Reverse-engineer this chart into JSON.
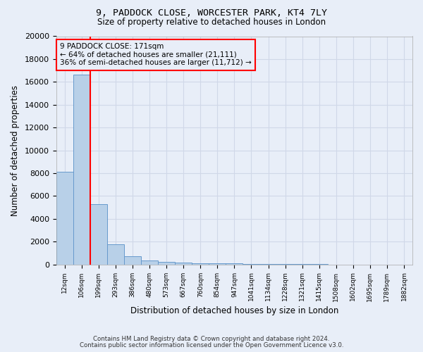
{
  "title1": "9, PADDOCK CLOSE, WORCESTER PARK, KT4 7LY",
  "title2": "Size of property relative to detached houses in London",
  "xlabel": "Distribution of detached houses by size in London",
  "ylabel": "Number of detached properties",
  "categories": [
    "12sqm",
    "106sqm",
    "199sqm",
    "293sqm",
    "386sqm",
    "480sqm",
    "573sqm",
    "667sqm",
    "760sqm",
    "854sqm",
    "947sqm",
    "1041sqm",
    "1134sqm",
    "1228sqm",
    "1321sqm",
    "1415sqm",
    "1508sqm",
    "1602sqm",
    "1695sqm",
    "1789sqm",
    "1882sqm"
  ],
  "values": [
    8100,
    16650,
    5300,
    1800,
    700,
    340,
    220,
    160,
    130,
    110,
    90,
    60,
    40,
    30,
    20,
    15,
    10,
    8,
    6,
    5,
    4
  ],
  "bar_color": "#b8d0e8",
  "bar_edge_color": "#6699cc",
  "red_line_x": 1.5,
  "annotation_text": "9 PADDOCK CLOSE: 171sqm\n← 64% of detached houses are smaller (21,111)\n36% of semi-detached houses are larger (11,712) →",
  "ylim": [
    0,
    20000
  ],
  "yticks": [
    0,
    2000,
    4000,
    6000,
    8000,
    10000,
    12000,
    14000,
    16000,
    18000,
    20000
  ],
  "footnote1": "Contains HM Land Registry data © Crown copyright and database right 2024.",
  "footnote2": "Contains public sector information licensed under the Open Government Licence v3.0.",
  "background_color": "#e8eef8",
  "grid_color": "#d0d8e8"
}
